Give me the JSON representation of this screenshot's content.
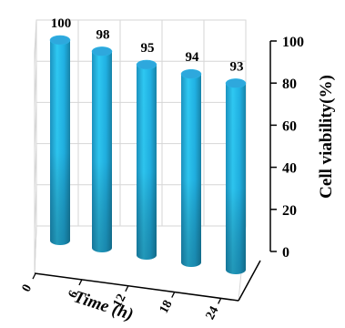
{
  "chart_data": {
    "type": "bar",
    "style": "3d-cylinder",
    "categories": [
      "0",
      "6",
      "12",
      "18",
      "24"
    ],
    "values": [
      100,
      98,
      95,
      94,
      93
    ],
    "data_labels": [
      "100",
      "98",
      "95",
      "94",
      "93"
    ],
    "title": "",
    "xlabel": "Time (h)",
    "ylabel": "Cell viability(%)",
    "ylim": [
      0,
      100
    ],
    "yticks": [
      "0",
      "20",
      "40",
      "60",
      "80",
      "100"
    ],
    "grid": true,
    "legend": "none",
    "colors": {
      "bar_top": "#2ea8dd",
      "bar_light": "#2ec8f2",
      "bar_mid": "#1fa6d6",
      "bar_dark": "#1a7f9c",
      "axis": "#000000",
      "grid": "#d6d6d6"
    }
  }
}
